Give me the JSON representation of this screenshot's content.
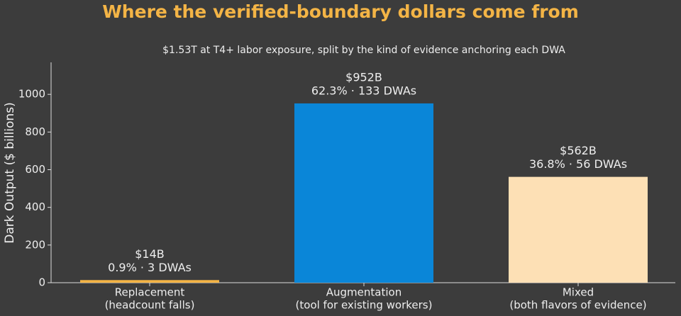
{
  "chart_data": {
    "type": "bar",
    "title": "Where the verified-boundary dollars come from",
    "subtitle": "$1.53T at T4+ labor exposure, split by the kind of evidence anchoring each DWA",
    "y_label": "Dark Output ($ billions)",
    "categories": [
      "Replacement",
      "Augmentation",
      "Mixed"
    ],
    "category_notes": [
      "(headcount falls)",
      "(tool for existing workers)",
      "(both flavors of evidence)"
    ],
    "values": [
      14,
      952,
      562
    ],
    "value_labels": [
      "$14B",
      "$952B",
      "$562B"
    ],
    "value_notes": [
      "0.9% · 3 DWAs",
      "62.3% · 133 DWAs",
      "36.8% · 56 DWAs"
    ],
    "colors": [
      "#f3b446",
      "#0a86d8",
      "#fde0b5"
    ],
    "ylim": [
      0,
      1170
    ],
    "yticks": [
      0,
      200,
      400,
      600,
      800,
      1000
    ],
    "grid": false
  }
}
